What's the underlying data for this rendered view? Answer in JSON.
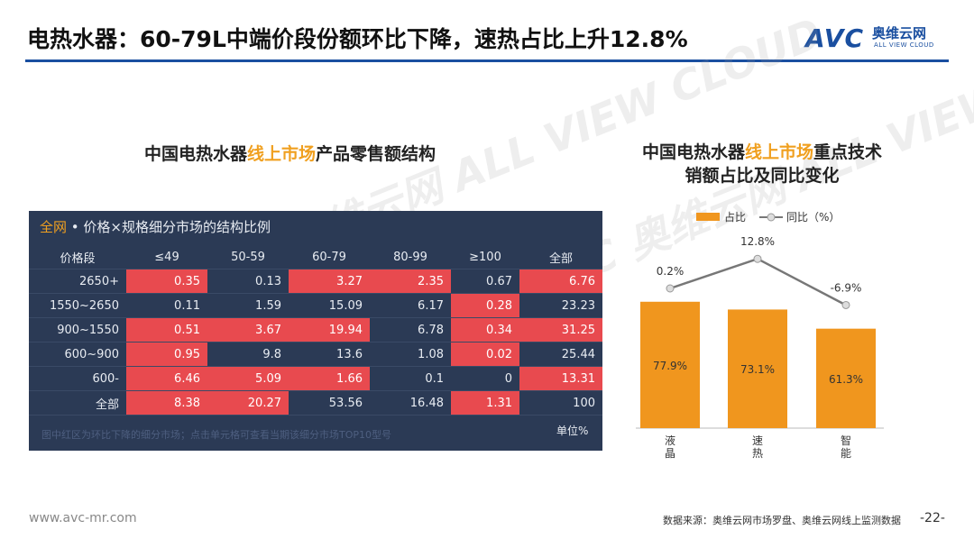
{
  "header": {
    "title": "电热水器：60-79L中端价段份额环比下降，速热占比上升12.8%",
    "logo_main": "AVC",
    "logo_cn": "奥维云网",
    "logo_en": "ALL VIEW CLOUD"
  },
  "watermark_text": "AVC 奥维云网 ALL VIEW CLOUD",
  "left_panel": {
    "title_pre": "中国电热水器",
    "title_hl": "线上市场",
    "title_post": "产品零售额结构",
    "caption_hl": "全网",
    "caption_rest": " • 价格×规格细分市场的结构比例",
    "columns": [
      "价格段",
      "≤49",
      "50-59",
      "60-79",
      "80-99",
      "≥100",
      "全部"
    ],
    "rows": [
      {
        "label": "2650+",
        "cells": [
          {
            "v": "0.35",
            "red": true
          },
          {
            "v": "0.13",
            "red": false
          },
          {
            "v": "3.27",
            "red": true
          },
          {
            "v": "2.35",
            "red": true
          },
          {
            "v": "0.67",
            "red": false
          },
          {
            "v": "6.76",
            "red": true
          }
        ]
      },
      {
        "label": "1550~2650",
        "cells": [
          {
            "v": "0.11",
            "red": false
          },
          {
            "v": "1.59",
            "red": false
          },
          {
            "v": "15.09",
            "red": false
          },
          {
            "v": "6.17",
            "red": false
          },
          {
            "v": "0.28",
            "red": true
          },
          {
            "v": "23.23",
            "red": false
          }
        ]
      },
      {
        "label": "900~1550",
        "cells": [
          {
            "v": "0.51",
            "red": true
          },
          {
            "v": "3.67",
            "red": true
          },
          {
            "v": "19.94",
            "red": true
          },
          {
            "v": "6.78",
            "red": false
          },
          {
            "v": "0.34",
            "red": true
          },
          {
            "v": "31.25",
            "red": true
          }
        ]
      },
      {
        "label": "600~900",
        "cells": [
          {
            "v": "0.95",
            "red": true
          },
          {
            "v": "9.8",
            "red": false
          },
          {
            "v": "13.6",
            "red": false
          },
          {
            "v": "1.08",
            "red": false
          },
          {
            "v": "0.02",
            "red": true
          },
          {
            "v": "25.44",
            "red": false
          }
        ]
      },
      {
        "label": "600-",
        "cells": [
          {
            "v": "6.46",
            "red": true
          },
          {
            "v": "5.09",
            "red": true
          },
          {
            "v": "1.66",
            "red": true
          },
          {
            "v": "0.1",
            "red": false
          },
          {
            "v": "0",
            "red": false
          },
          {
            "v": "13.31",
            "red": true
          }
        ]
      },
      {
        "label": "全部",
        "cells": [
          {
            "v": "8.38",
            "red": true
          },
          {
            "v": "20.27",
            "red": true
          },
          {
            "v": "53.56",
            "red": false
          },
          {
            "v": "16.48",
            "red": false
          },
          {
            "v": "1.31",
            "red": true
          },
          {
            "v": "100",
            "red": false
          }
        ]
      }
    ],
    "footnote": "图中红区为环比下降的细分市场；点击单元格可查看当期该细分市场TOP10型号",
    "unit": "单位%"
  },
  "right_panel": {
    "title_line1_pre": "中国电热水器",
    "title_line1_hl": "线上市场",
    "title_line1_post": "重点技术",
    "title_line2": "销额占比及同比变化"
  },
  "chart_data": {
    "type": "bar",
    "categories": [
      "液晶",
      "速热",
      "智能"
    ],
    "series": [
      {
        "name": "占比",
        "kind": "bar",
        "values": [
          77.9,
          73.1,
          61.3
        ],
        "labels": [
          "77.9%",
          "73.1%",
          "61.3%"
        ],
        "color": "#f0961e"
      },
      {
        "name": "同比（%）",
        "kind": "line",
        "values": [
          0.2,
          12.8,
          -6.9
        ],
        "labels": [
          "0.2%",
          "12.8%",
          "-6.9%"
        ],
        "color": "#777777"
      }
    ],
    "legend_position": "top",
    "grid": false
  },
  "footer": {
    "url": "www.avc-mr.com",
    "source": "数据来源：奥维云网市场罗盘、奥维云网线上监测数据",
    "page": "-22-"
  },
  "colors": {
    "brand_blue": "#1a4fa0",
    "accent_orange": "#f0a020",
    "table_bg": "#2b3a55",
    "cell_red": "#e84a4f"
  }
}
